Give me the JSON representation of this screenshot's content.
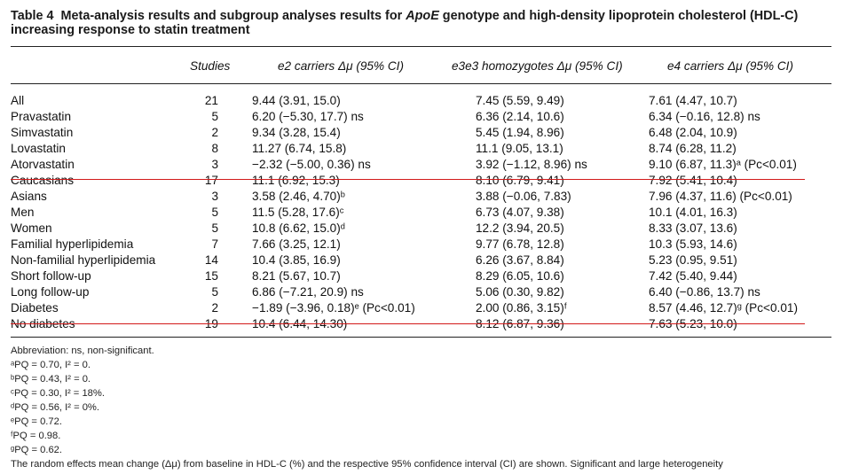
{
  "table": {
    "label": "Table 4",
    "caption_pre": "Meta-analysis results and subgroup analyses results for ",
    "caption_em": "ApoE",
    "caption_post": " genotype and high-density lipoprotein cholesterol (HDL-C) increasing response to statin treatment",
    "headers": {
      "studies": "Studies",
      "e2": "e2 carriers Δμ (95% CI)",
      "e3": "e3e3 homozygotes Δμ (95% CI)",
      "e4": "e4 carriers Δμ (95% CI)"
    },
    "rows": [
      {
        "label": "All",
        "n": "21",
        "e2": "9.44 (3.91, 15.0)",
        "e3": "7.45 (5.59, 9.49)",
        "e4": "7.61 (4.47, 10.7)"
      },
      {
        "label": "Pravastatin",
        "n": "5",
        "e2": "6.20 (−5.30, 17.7) ns",
        "e3": "6.36 (2.14, 10.6)",
        "e4": "6.34 (−0.16, 12.8) ns"
      },
      {
        "label": "Simvastatin",
        "n": "2",
        "e2": "9.34 (3.28, 15.4)",
        "e3": "5.45 (1.94, 8.96)",
        "e4": "6.48 (2.04, 10.9)"
      },
      {
        "label": "Lovastatin",
        "n": "8",
        "e2": "11.27 (6.74, 15.8)",
        "e3": "11.1 (9.05, 13.1)",
        "e4": "8.74 (6.28, 11.2)"
      },
      {
        "label": "Atorvastatin",
        "n": "3",
        "e2": "−2.32 (−5.00, 0.36) ns",
        "e3": "3.92 (−1.12, 8.96) ns",
        "e4": "9.10 (6.87, 11.3)ᵃ (Pc<0.01)"
      },
      {
        "label": "Caucasians",
        "n": "17",
        "e2": "11.1 (6.92, 15.3)",
        "e3": "8.10 (6.79, 9.41)",
        "e4": "7.92 (5.41, 10.4)"
      },
      {
        "label": "Asians",
        "n": "3",
        "e2": "3.58 (2.46, 4.70)ᵇ",
        "e3": "3.88 (−0.06, 7.83)",
        "e4": "7.96 (4.37, 11.6) (Pc<0.01)"
      },
      {
        "label": "Men",
        "n": "5",
        "e2": "11.5 (5.28, 17.6)ᶜ",
        "e3": "6.73 (4.07, 9.38)",
        "e4": "10.1 (4.01, 16.3)"
      },
      {
        "label": "Women",
        "n": "5",
        "e2": "10.8 (6.62, 15.0)ᵈ",
        "e3": "12.2 (3.94, 20.5)",
        "e4": "8.33 (3.07, 13.6)"
      },
      {
        "label": "Familial hyperlipidemia",
        "n": "7",
        "e2": "7.66 (3.25, 12.1)",
        "e3": "9.77 (6.78, 12.8)",
        "e4": "10.3 (5.93, 14.6)"
      },
      {
        "label": "Non-familial hyperlipidemia",
        "n": "14",
        "e2": "10.4 (3.85, 16.9)",
        "e3": "6.26 (3.67, 8.84)",
        "e4": "5.23 (0.95, 9.51)"
      },
      {
        "label": "Short follow-up",
        "n": "15",
        "e2": "8.21 (5.67, 10.7)",
        "e3": "8.29 (6.05, 10.6)",
        "e4": "7.42 (5.40, 9.44)"
      },
      {
        "label": "Long follow-up",
        "n": "5",
        "e2": "6.86 (−7.21, 20.9) ns",
        "e3": "5.06 (0.30, 9.82)",
        "e4": "6.40 (−0.86, 13.7) ns"
      },
      {
        "label": "Diabetes",
        "n": "2",
        "e2": "−1.89 (−3.96, 0.18)ᵉ (Pc<0.01)",
        "e3": "2.00 (0.86, 3.15)ᶠ",
        "e4": "8.57 (4.46, 12.7)ᵍ (Pc<0.01)"
      },
      {
        "label": "No diabetes",
        "n": "19",
        "e2": "10.4 (6.44, 14.30)",
        "e3": "8.12 (6.87, 9.36)",
        "e4": "7.63 (5.23, 10.0)"
      }
    ]
  },
  "footnotes": [
    "Abbreviation: ns, non-significant.",
    "ᵃPQ = 0.70, I² = 0.",
    "ᵇPQ = 0.43, I² = 0.",
    "ᶜPQ = 0.30, I² = 18%.",
    "ᵈPQ = 0.56, I² = 0%.",
    "ᵉPQ = 0.72.",
    "ᶠPQ = 0.98.",
    "ᵍPQ = 0.62.",
    "The random effects mean change (Δμ) from baseline in HDL-C (%) and the respective 95% confidence interval (CI) are shown. Significant and large heterogeneity"
  ],
  "colors": {
    "annotation_line": "#d21a1a"
  }
}
